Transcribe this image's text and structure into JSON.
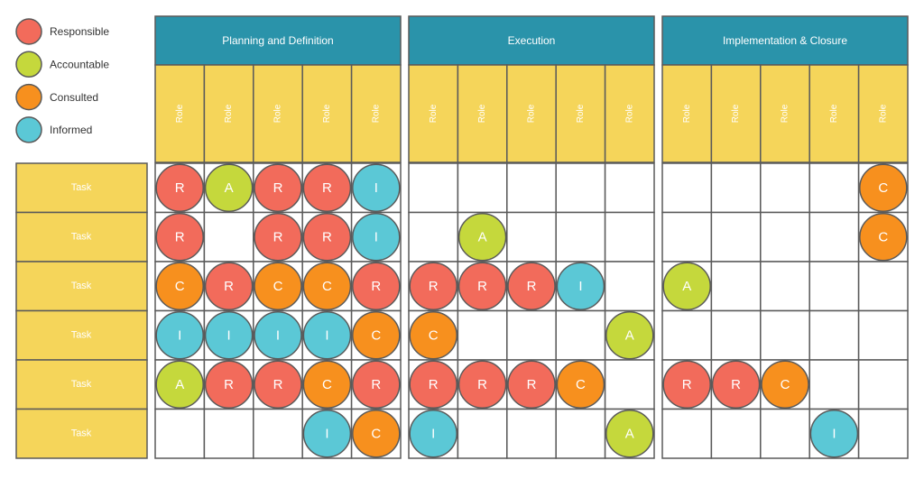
{
  "legend": [
    {
      "label": "Responsible",
      "color": "#f26b5b"
    },
    {
      "label": "Accountable",
      "color": "#c5d83c"
    },
    {
      "label": "Consulted",
      "color": "#f7901e"
    },
    {
      "label": "Informed",
      "color": "#5bc8d6"
    }
  ],
  "phases": [
    {
      "title": "Planning and Definition",
      "roles": [
        "Role",
        "Role",
        "Role",
        "Role",
        "Role"
      ]
    },
    {
      "title": "Execution",
      "roles": [
        "Role",
        "Role",
        "Role",
        "Role",
        "Role"
      ]
    },
    {
      "title": "Implementation & Closure",
      "roles": [
        "Role",
        "Role",
        "Role",
        "Role",
        "Role"
      ]
    }
  ],
  "rows": [
    {
      "task": "Task",
      "cells": [
        "R",
        "A",
        "R",
        "R",
        "I",
        null,
        null,
        null,
        null,
        null,
        null,
        null,
        null,
        null,
        "C"
      ]
    },
    {
      "task": "Task",
      "cells": [
        "R",
        null,
        "R",
        "R",
        "I",
        null,
        "A",
        null,
        null,
        null,
        null,
        null,
        null,
        null,
        "C"
      ]
    },
    {
      "task": "Task",
      "cells": [
        "C",
        "R",
        "C",
        "C",
        "R",
        "R",
        "R",
        "R",
        "I",
        null,
        "A",
        null,
        null,
        null,
        null
      ]
    },
    {
      "task": "Task",
      "cells": [
        "I",
        "I",
        "I",
        "I",
        "C",
        "C",
        null,
        null,
        null,
        "A",
        null,
        null,
        null,
        null,
        null
      ]
    },
    {
      "task": "Task",
      "cells": [
        "A",
        "R",
        "R",
        "C",
        "R",
        "R",
        "R",
        "R",
        "C",
        null,
        "R",
        "R",
        "C",
        null,
        null
      ]
    },
    {
      "task": "Task",
      "cells": [
        null,
        null,
        null,
        "I",
        "C",
        "I",
        null,
        null,
        null,
        "A",
        null,
        null,
        null,
        "I",
        null
      ]
    }
  ]
}
